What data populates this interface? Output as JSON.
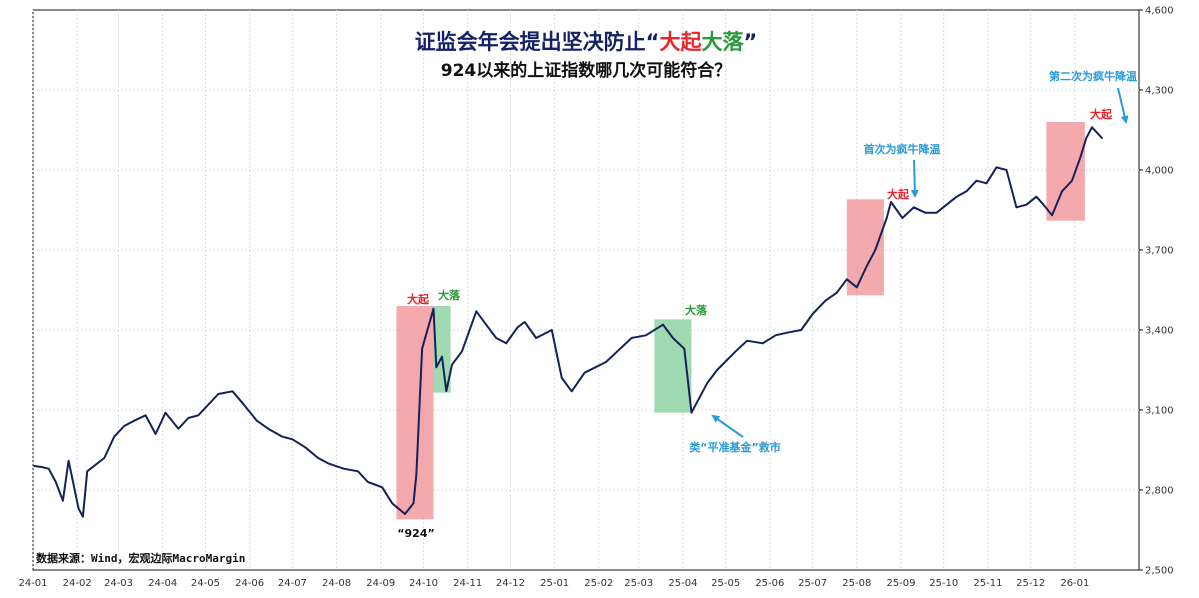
{
  "title": {
    "part1": "证监会年会提出坚决防止“",
    "red": "大起",
    "green": "大落",
    "part2": "”"
  },
  "subtitle": "924以来的上证指数哪几次可能符合？",
  "source": "数据来源：Wind，宏观边际MacroMargin",
  "colors": {
    "line": "#14215a",
    "red": "#e8252b",
    "green": "#2a9a3a",
    "blue": "#2a9ad8",
    "redFill": "#f29a9e",
    "greenFill": "#8fd3a3",
    "titleDark": "#152166"
  },
  "annotations": {
    "up1": "大起",
    "down1": "大落",
    "down2": "大落",
    "up2": "大起",
    "up3": "大起",
    "label924": "“924”",
    "rescue": "类“平准基金”救市",
    "cool1": "首次为疯牛降温",
    "cool2": "第二次为疯牛降温"
  },
  "chart_data": {
    "type": "line",
    "title": "证监会年会提出坚决防止“大起大落”",
    "subtitle": "924以来的上证指数哪几次可能符合？",
    "xlabel": "",
    "ylabel": "",
    "ylim": [
      2500,
      4600
    ],
    "grid": true,
    "y_axis_side": "right",
    "yticks": [
      "2,500",
      "2,800",
      "3,100",
      "3,400",
      "3,700",
      "4,000",
      "4,300",
      "4,600"
    ],
    "xticks": [
      "24-01",
      "24-02",
      "24-03",
      "24-04",
      "24-05",
      "24-06",
      "24-07",
      "24-08",
      "24-09",
      "24-10",
      "24-11",
      "24-12",
      "25-01",
      "25-02",
      "25-03",
      "25-04",
      "25-05",
      "25-06",
      "25-07",
      "25-08",
      "25-09",
      "25-10",
      "25-11",
      "25-12",
      "26-01"
    ],
    "series": [
      {
        "x": [
          "2024-01-02",
          "2024-01-08",
          "2024-01-12",
          "2024-01-17",
          "2024-01-22",
          "2024-01-26",
          "2024-02-02",
          "2024-02-05",
          "2024-02-08",
          "2024-02-20",
          "2024-02-27",
          "2024-03-05",
          "2024-03-12",
          "2024-03-20",
          "2024-03-27",
          "2024-04-03",
          "2024-04-12",
          "2024-04-19",
          "2024-04-26",
          "2024-05-10",
          "2024-05-20",
          "2024-05-28",
          "2024-06-06",
          "2024-06-14",
          "2024-06-24",
          "2024-07-01",
          "2024-07-10",
          "2024-07-19",
          "2024-07-26",
          "2024-08-06",
          "2024-08-16",
          "2024-08-23",
          "2024-09-02",
          "2024-09-09",
          "2024-09-18",
          "2024-09-24",
          "2024-09-26",
          "2024-09-30",
          "2024-10-08",
          "2024-10-10",
          "2024-10-14",
          "2024-10-17",
          "2024-10-21",
          "2024-10-28",
          "2024-11-07",
          "2024-11-14",
          "2024-11-21",
          "2024-11-28",
          "2024-12-06",
          "2024-12-11",
          "2024-12-19",
          "2024-12-30",
          "2025-01-06",
          "2025-01-13",
          "2025-01-22",
          "2025-02-06",
          "2025-02-14",
          "2025-02-24",
          "2025-03-06",
          "2025-03-18",
          "2025-03-25",
          "2025-04-02",
          "2025-04-07",
          "2025-04-10",
          "2025-04-18",
          "2025-04-25",
          "2025-05-08",
          "2025-05-16",
          "2025-05-27",
          "2025-06-05",
          "2025-06-13",
          "2025-06-23",
          "2025-07-01",
          "2025-07-10",
          "2025-07-18",
          "2025-07-25",
          "2025-08-01",
          "2025-08-08",
          "2025-08-14",
          "2025-08-22",
          "2025-08-25",
          "2025-09-02",
          "2025-09-10",
          "2025-09-18",
          "2025-09-26",
          "2025-10-10",
          "2025-10-17",
          "2025-10-24",
          "2025-10-31",
          "2025-11-07",
          "2025-11-14",
          "2025-11-21",
          "2025-11-28",
          "2025-12-05",
          "2025-12-10",
          "2025-12-16",
          "2025-12-23",
          "2025-12-30",
          "2026-01-05",
          "2026-01-09",
          "2026-01-13",
          "2026-01-20"
        ],
        "values": [
          2890,
          2885,
          2880,
          2830,
          2760,
          2910,
          2730,
          2700,
          2870,
          2920,
          3000,
          3040,
          3060,
          3080,
          3010,
          3090,
          3030,
          3070,
          3080,
          3160,
          3170,
          3120,
          3060,
          3030,
          3000,
          2990,
          2960,
          2920,
          2900,
          2880,
          2870,
          2830,
          2810,
          2750,
          2710,
          2750,
          2860,
          3330,
          3480,
          3260,
          3300,
          3170,
          3270,
          3320,
          3470,
          3420,
          3370,
          3350,
          3410,
          3430,
          3370,
          3400,
          3220,
          3170,
          3240,
          3280,
          3320,
          3370,
          3380,
          3420,
          3370,
          3330,
          3090,
          3120,
          3200,
          3250,
          3320,
          3360,
          3350,
          3380,
          3390,
          3400,
          3460,
          3510,
          3540,
          3590,
          3560,
          3640,
          3700,
          3820,
          3880,
          3820,
          3860,
          3840,
          3840,
          3900,
          3920,
          3960,
          3950,
          4010,
          4000,
          3860,
          3870,
          3900,
          3870,
          3830,
          3920,
          3960,
          4050,
          4120,
          4160,
          4120
        ]
      }
    ],
    "highlights": [
      {
        "label": "大起",
        "kind": "rise",
        "start": "2024-09-12",
        "end": "2024-10-08",
        "low": 2690,
        "high": 3490
      },
      {
        "label": "大落",
        "kind": "fall",
        "start": "2024-10-08",
        "end": "2024-10-20",
        "low": 3165,
        "high": 3490
      },
      {
        "label": "大落",
        "kind": "fall",
        "start": "2025-03-12",
        "end": "2025-04-07",
        "low": 3090,
        "high": 3440
      },
      {
        "label": "大起",
        "kind": "rise",
        "start": "2025-07-25",
        "end": "2025-08-20",
        "low": 3530,
        "high": 3890
      },
      {
        "label": "大起",
        "kind": "rise",
        "start": "2025-12-12",
        "end": "2026-01-08",
        "low": 3810,
        "high": 4180
      }
    ]
  }
}
